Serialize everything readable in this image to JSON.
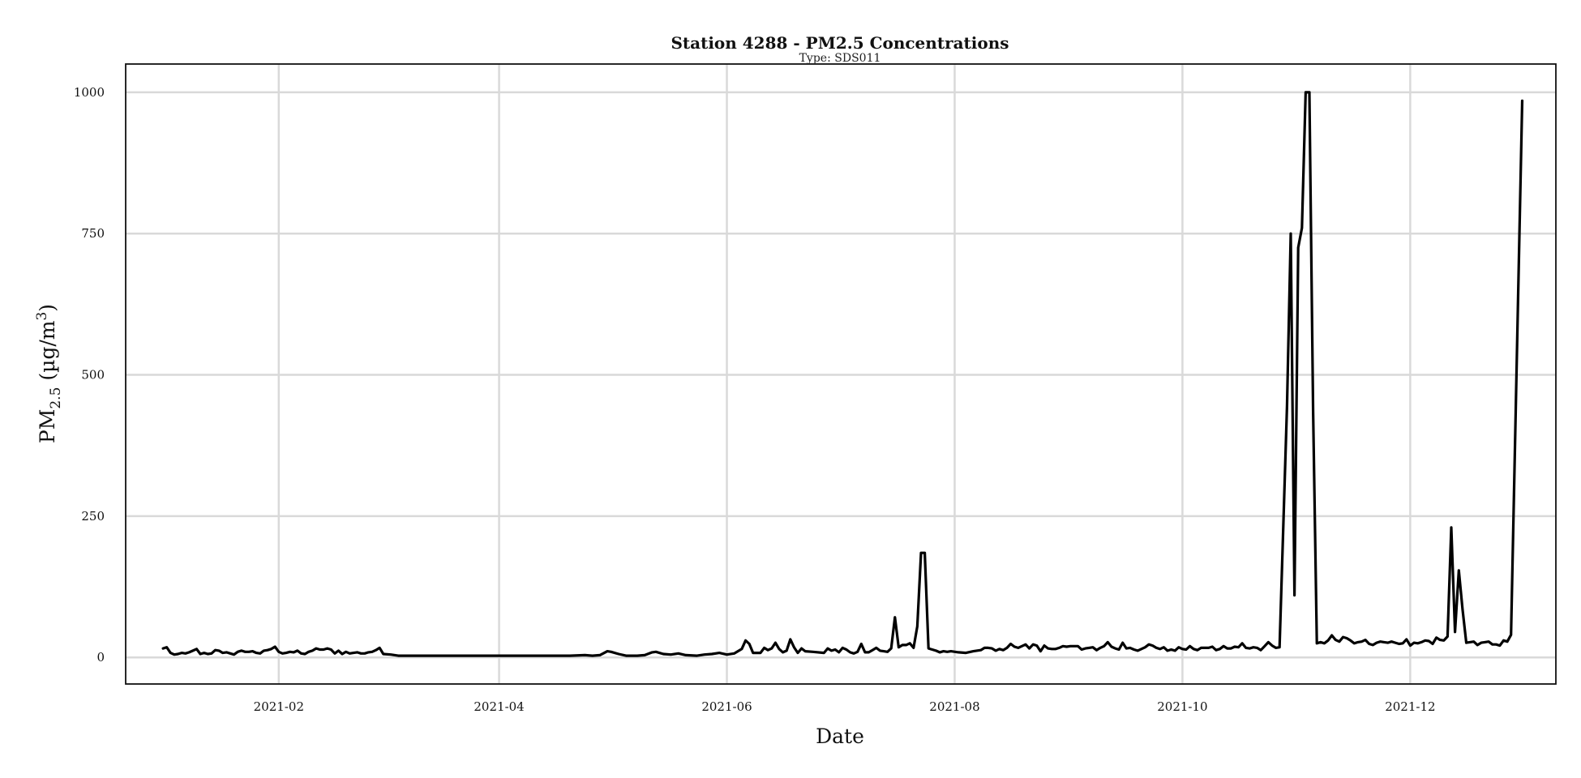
{
  "chart_data": {
    "type": "line",
    "title": "Station 4288 - PM2.5 Concentrations",
    "subtitle": "Type: SDS011",
    "xlabel": "Date",
    "ylabel": {
      "base": "PM",
      "sub": "2.5",
      "unit_open": " (µg/m",
      "sup": "3",
      "unit_close": ")"
    },
    "x_ticks": [
      "2021-02",
      "2021-04",
      "2021-06",
      "2021-08",
      "2021-10",
      "2021-12"
    ],
    "y_ticks": [
      0,
      250,
      500,
      750,
      1000
    ],
    "xlim": [
      "2020-12-22",
      "2022-01-09"
    ],
    "ylim": [
      -47,
      1050
    ],
    "grid": true,
    "line_color": "#000000",
    "series": [
      {
        "points": [
          [
            "2021-01-01",
            16
          ],
          [
            "2021-01-02",
            18
          ],
          [
            "2021-01-03",
            8
          ],
          [
            "2021-01-04",
            5
          ],
          [
            "2021-01-05",
            6
          ],
          [
            "2021-01-06",
            8
          ],
          [
            "2021-01-07",
            7
          ],
          [
            "2021-01-08",
            9
          ],
          [
            "2021-01-09",
            12
          ],
          [
            "2021-01-10",
            15
          ],
          [
            "2021-01-11",
            6
          ],
          [
            "2021-01-12",
            8
          ],
          [
            "2021-01-13",
            6
          ],
          [
            "2021-01-14",
            7
          ],
          [
            "2021-01-15",
            13
          ],
          [
            "2021-01-16",
            12
          ],
          [
            "2021-01-17",
            8
          ],
          [
            "2021-01-18",
            9
          ],
          [
            "2021-01-19",
            7
          ],
          [
            "2021-01-20",
            5
          ],
          [
            "2021-01-21",
            10
          ],
          [
            "2021-01-22",
            12
          ],
          [
            "2021-01-23",
            10
          ],
          [
            "2021-01-24",
            10
          ],
          [
            "2021-01-25",
            11
          ],
          [
            "2021-01-26",
            8
          ],
          [
            "2021-01-27",
            7
          ],
          [
            "2021-01-28",
            12
          ],
          [
            "2021-01-29",
            13
          ],
          [
            "2021-01-30",
            15
          ],
          [
            "2021-01-31",
            19
          ],
          [
            "2021-02-01",
            10
          ],
          [
            "2021-02-02",
            7
          ],
          [
            "2021-02-03",
            8
          ],
          [
            "2021-02-04",
            10
          ],
          [
            "2021-02-05",
            9
          ],
          [
            "2021-02-06",
            12
          ],
          [
            "2021-02-07",
            7
          ],
          [
            "2021-02-08",
            6
          ],
          [
            "2021-02-09",
            10
          ],
          [
            "2021-02-10",
            12
          ],
          [
            "2021-02-11",
            16
          ],
          [
            "2021-02-12",
            14
          ],
          [
            "2021-02-13",
            14
          ],
          [
            "2021-02-14",
            16
          ],
          [
            "2021-02-15",
            14
          ],
          [
            "2021-02-16",
            7
          ],
          [
            "2021-02-17",
            12
          ],
          [
            "2021-02-18",
            6
          ],
          [
            "2021-02-19",
            10
          ],
          [
            "2021-02-20",
            7
          ],
          [
            "2021-02-21",
            8
          ],
          [
            "2021-02-22",
            9
          ],
          [
            "2021-02-23",
            7
          ],
          [
            "2021-02-24",
            7
          ],
          [
            "2021-02-25",
            9
          ],
          [
            "2021-02-26",
            10
          ],
          [
            "2021-02-27",
            13
          ],
          [
            "2021-02-28",
            17
          ],
          [
            "2021-03-01",
            6
          ],
          [
            "2021-03-03",
            5
          ],
          [
            "2021-03-05",
            3
          ],
          [
            "2021-03-12",
            3
          ],
          [
            "2021-03-22",
            3
          ],
          [
            "2021-04-01",
            3
          ],
          [
            "2021-04-10",
            3
          ],
          [
            "2021-04-20",
            3
          ],
          [
            "2021-04-24",
            4
          ],
          [
            "2021-04-26",
            3
          ],
          [
            "2021-04-28",
            4
          ],
          [
            "2021-04-30",
            11
          ],
          [
            "2021-05-01",
            10
          ],
          [
            "2021-05-03",
            6
          ],
          [
            "2021-05-05",
            3
          ],
          [
            "2021-05-08",
            3
          ],
          [
            "2021-05-10",
            4
          ],
          [
            "2021-05-12",
            9
          ],
          [
            "2021-05-13",
            10
          ],
          [
            "2021-05-15",
            6
          ],
          [
            "2021-05-17",
            5
          ],
          [
            "2021-05-19",
            7
          ],
          [
            "2021-05-21",
            4
          ],
          [
            "2021-05-24",
            3
          ],
          [
            "2021-05-26",
            5
          ],
          [
            "2021-05-28",
            6
          ],
          [
            "2021-05-30",
            8
          ],
          [
            "2021-06-01",
            5
          ],
          [
            "2021-06-03",
            7
          ],
          [
            "2021-06-05",
            15
          ],
          [
            "2021-06-06",
            30
          ],
          [
            "2021-06-07",
            24
          ],
          [
            "2021-06-08",
            8
          ],
          [
            "2021-06-10",
            8
          ],
          [
            "2021-06-11",
            17
          ],
          [
            "2021-06-12",
            13
          ],
          [
            "2021-06-13",
            16
          ],
          [
            "2021-06-14",
            26
          ],
          [
            "2021-06-15",
            15
          ],
          [
            "2021-06-16",
            9
          ],
          [
            "2021-06-17",
            12
          ],
          [
            "2021-06-18",
            32
          ],
          [
            "2021-06-19",
            18
          ],
          [
            "2021-06-20",
            8
          ],
          [
            "2021-06-21",
            16
          ],
          [
            "2021-06-22",
            11
          ],
          [
            "2021-06-24",
            10
          ],
          [
            "2021-06-27",
            8
          ],
          [
            "2021-06-28",
            16
          ],
          [
            "2021-06-29",
            12
          ],
          [
            "2021-06-30",
            14
          ],
          [
            "2021-07-01",
            9
          ],
          [
            "2021-07-02",
            17
          ],
          [
            "2021-07-03",
            14
          ],
          [
            "2021-07-04",
            9
          ],
          [
            "2021-07-05",
            7
          ],
          [
            "2021-07-06",
            10
          ],
          [
            "2021-07-07",
            24
          ],
          [
            "2021-07-08",
            9
          ],
          [
            "2021-07-09",
            9
          ],
          [
            "2021-07-10",
            13
          ],
          [
            "2021-07-11",
            17
          ],
          [
            "2021-07-12",
            12
          ],
          [
            "2021-07-13",
            11
          ],
          [
            "2021-07-14",
            10
          ],
          [
            "2021-07-15",
            16
          ],
          [
            "2021-07-16",
            71
          ],
          [
            "2021-07-17",
            18
          ],
          [
            "2021-07-18",
            22
          ],
          [
            "2021-07-19",
            22
          ],
          [
            "2021-07-20",
            25
          ],
          [
            "2021-07-21",
            17
          ],
          [
            "2021-07-22",
            55
          ],
          [
            "2021-07-23",
            185
          ],
          [
            "2021-07-24",
            185
          ],
          [
            "2021-07-25",
            16
          ],
          [
            "2021-07-26",
            14
          ],
          [
            "2021-07-27",
            12
          ],
          [
            "2021-07-28",
            9
          ],
          [
            "2021-07-29",
            11
          ],
          [
            "2021-07-30",
            10
          ],
          [
            "2021-07-31",
            11
          ],
          [
            "2021-08-02",
            9
          ],
          [
            "2021-08-04",
            8
          ],
          [
            "2021-08-06",
            11
          ],
          [
            "2021-08-08",
            13
          ],
          [
            "2021-08-09",
            17
          ],
          [
            "2021-08-10",
            17
          ],
          [
            "2021-08-11",
            16
          ],
          [
            "2021-08-12",
            12
          ],
          [
            "2021-08-13",
            15
          ],
          [
            "2021-08-14",
            13
          ],
          [
            "2021-08-15",
            17
          ],
          [
            "2021-08-16",
            24
          ],
          [
            "2021-08-17",
            19
          ],
          [
            "2021-08-18",
            17
          ],
          [
            "2021-08-19",
            20
          ],
          [
            "2021-08-20",
            23
          ],
          [
            "2021-08-21",
            16
          ],
          [
            "2021-08-22",
            23
          ],
          [
            "2021-08-23",
            21
          ],
          [
            "2021-08-24",
            11
          ],
          [
            "2021-08-25",
            21
          ],
          [
            "2021-08-26",
            16
          ],
          [
            "2021-08-27",
            15
          ],
          [
            "2021-08-28",
            15
          ],
          [
            "2021-08-29",
            17
          ],
          [
            "2021-08-30",
            20
          ],
          [
            "2021-08-31",
            19
          ],
          [
            "2021-09-01",
            20
          ],
          [
            "2021-09-02",
            20
          ],
          [
            "2021-09-03",
            20
          ],
          [
            "2021-09-04",
            14
          ],
          [
            "2021-09-05",
            16
          ],
          [
            "2021-09-06",
            17
          ],
          [
            "2021-09-07",
            18
          ],
          [
            "2021-09-08",
            13
          ],
          [
            "2021-09-09",
            17
          ],
          [
            "2021-09-10",
            20
          ],
          [
            "2021-09-11",
            27
          ],
          [
            "2021-09-12",
            19
          ],
          [
            "2021-09-13",
            16
          ],
          [
            "2021-09-14",
            14
          ],
          [
            "2021-09-15",
            26
          ],
          [
            "2021-09-16",
            16
          ],
          [
            "2021-09-17",
            17
          ],
          [
            "2021-09-18",
            14
          ],
          [
            "2021-09-19",
            12
          ],
          [
            "2021-09-20",
            15
          ],
          [
            "2021-09-21",
            18
          ],
          [
            "2021-09-22",
            23
          ],
          [
            "2021-09-23",
            21
          ],
          [
            "2021-09-24",
            17
          ],
          [
            "2021-09-25",
            15
          ],
          [
            "2021-09-26",
            18
          ],
          [
            "2021-09-27",
            12
          ],
          [
            "2021-09-28",
            14
          ],
          [
            "2021-09-29",
            12
          ],
          [
            "2021-09-30",
            18
          ],
          [
            "2021-10-01",
            15
          ],
          [
            "2021-10-02",
            14
          ],
          [
            "2021-10-03",
            20
          ],
          [
            "2021-10-04",
            15
          ],
          [
            "2021-10-05",
            13
          ],
          [
            "2021-10-06",
            17
          ],
          [
            "2021-10-08",
            17
          ],
          [
            "2021-10-09",
            19
          ],
          [
            "2021-10-10",
            13
          ],
          [
            "2021-10-11",
            15
          ],
          [
            "2021-10-12",
            20
          ],
          [
            "2021-10-13",
            16
          ],
          [
            "2021-10-14",
            16
          ],
          [
            "2021-10-15",
            19
          ],
          [
            "2021-10-16",
            18
          ],
          [
            "2021-10-17",
            25
          ],
          [
            "2021-10-18",
            17
          ],
          [
            "2021-10-19",
            16
          ],
          [
            "2021-10-20",
            18
          ],
          [
            "2021-10-21",
            17
          ],
          [
            "2021-10-22",
            13
          ],
          [
            "2021-10-23",
            20
          ],
          [
            "2021-10-24",
            27
          ],
          [
            "2021-10-25",
            21
          ],
          [
            "2021-10-26",
            17
          ],
          [
            "2021-10-27",
            18
          ],
          [
            "2021-10-29",
            445
          ],
          [
            "2021-10-30",
            750
          ],
          [
            "2021-10-31",
            110
          ],
          [
            "2021-11-01",
            725
          ],
          [
            "2021-11-02",
            760
          ],
          [
            "2021-11-03",
            1000
          ],
          [
            "2021-11-04",
            1000
          ],
          [
            "2021-11-05",
            435
          ],
          [
            "2021-11-06",
            25
          ],
          [
            "2021-11-07",
            27
          ],
          [
            "2021-11-08",
            25
          ],
          [
            "2021-11-09",
            30
          ],
          [
            "2021-11-10",
            39
          ],
          [
            "2021-11-11",
            31
          ],
          [
            "2021-11-12",
            28
          ],
          [
            "2021-11-13",
            36
          ],
          [
            "2021-11-14",
            34
          ],
          [
            "2021-11-15",
            30
          ],
          [
            "2021-11-16",
            25
          ],
          [
            "2021-11-17",
            27
          ],
          [
            "2021-11-18",
            28
          ],
          [
            "2021-11-19",
            31
          ],
          [
            "2021-11-20",
            24
          ],
          [
            "2021-11-21",
            22
          ],
          [
            "2021-11-22",
            26
          ],
          [
            "2021-11-23",
            28
          ],
          [
            "2021-11-24",
            27
          ],
          [
            "2021-11-25",
            26
          ],
          [
            "2021-11-26",
            28
          ],
          [
            "2021-11-27",
            26
          ],
          [
            "2021-11-28",
            24
          ],
          [
            "2021-11-29",
            25
          ],
          [
            "2021-11-30",
            32
          ],
          [
            "2021-12-01",
            21
          ],
          [
            "2021-12-02",
            26
          ],
          [
            "2021-12-03",
            25
          ],
          [
            "2021-12-04",
            27
          ],
          [
            "2021-12-05",
            30
          ],
          [
            "2021-12-06",
            29
          ],
          [
            "2021-12-07",
            24
          ],
          [
            "2021-12-08",
            35
          ],
          [
            "2021-12-09",
            31
          ],
          [
            "2021-12-10",
            30
          ],
          [
            "2021-12-11",
            37
          ],
          [
            "2021-12-12",
            230
          ],
          [
            "2021-12-13",
            45
          ],
          [
            "2021-12-14",
            154
          ],
          [
            "2021-12-15",
            85
          ],
          [
            "2021-12-16",
            26
          ],
          [
            "2021-12-17",
            27
          ],
          [
            "2021-12-18",
            28
          ],
          [
            "2021-12-19",
            22
          ],
          [
            "2021-12-20",
            26
          ],
          [
            "2021-12-21",
            27
          ],
          [
            "2021-12-22",
            28
          ],
          [
            "2021-12-23",
            23
          ],
          [
            "2021-12-24",
            23
          ],
          [
            "2021-12-25",
            21
          ],
          [
            "2021-12-26",
            30
          ],
          [
            "2021-12-27",
            28
          ],
          [
            "2021-12-28",
            40
          ],
          [
            "2021-12-31",
            985
          ]
        ]
      }
    ]
  }
}
